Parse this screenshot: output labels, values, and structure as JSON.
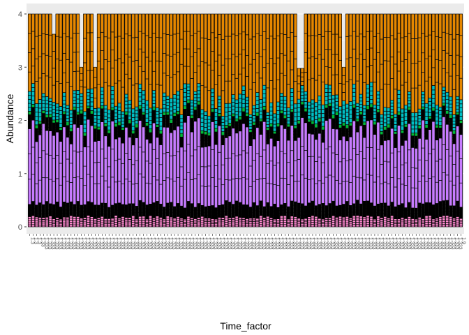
{
  "chart_data": {
    "type": "bar",
    "stacked": true,
    "title": "",
    "xlabel": "Time_factor",
    "ylabel": "Abundance",
    "ylim": [
      0,
      4
    ],
    "yticks": [
      0,
      1,
      2,
      3,
      4
    ],
    "grid": true,
    "legend": "none",
    "bar_count": 126,
    "stack_total": 4,
    "segment_outline_color": "#000000",
    "panel_background": "#ebebeb",
    "gridline_color": "#ffffff",
    "x_tick_label_orientation": "vertical, rotated 90 degrees",
    "low_total_bar_indices": [
      7,
      15,
      19,
      78,
      79,
      91
    ],
    "low_total_bar_values": [
      3.62,
      3.0,
      3.0,
      2.98,
      2.98,
      3.0
    ],
    "band_colors": {
      "base_pink": "#ff8ad1",
      "low_black": "#000000",
      "purple": "#c77cff",
      "mid_black": "#000000",
      "green": "#00ba38",
      "teal": "#00bfc4",
      "orange": "#e58700"
    },
    "typical_band_thickness": {
      "base_pink": 0.18,
      "low_black": 0.25,
      "purple": 1.35,
      "mid_black": 0.22,
      "green": 0.06,
      "teal": 0.35,
      "orange": 1.35
    },
    "x_tick_labels": [
      "1.3",
      "1.3",
      "1.3",
      "1.33",
      "1.333",
      "1.333",
      "1.333",
      "1.333",
      "1.333",
      "1.333",
      "1.333",
      "1.333",
      "1.333",
      "1.333",
      "1.333",
      "1.333",
      "1.333",
      "1.333",
      "1.333",
      "1.333",
      "1.333",
      "1.333",
      "1.333",
      "1.333",
      "1.333",
      "1.333",
      "1.333",
      "1.333",
      "1.333",
      "1.333",
      "1.333",
      "1.333",
      "1.333",
      "1.333",
      "1.333",
      "1.333",
      "1.333",
      "1.333",
      "1.333",
      "1.333",
      "1.333",
      "1.333",
      "1.333",
      "1.333",
      "1.333",
      "1.333",
      "1.333",
      "1.333",
      "1.333",
      "1.333",
      "1.333",
      "1.333",
      "1.333",
      "1.333",
      "1.333",
      "1.333",
      "1.333",
      "1.333",
      "1.333",
      "1.333",
      "1.333",
      "1.333",
      "1.333",
      "1.333",
      "1.333",
      "1.333",
      "1.333",
      "1.333",
      "1.333",
      "1.333",
      "1.333",
      "1.333",
      "1.333",
      "1.333",
      "1.333",
      "1.333",
      "1.333",
      "1.333",
      "1.333",
      "1.333",
      "1.333",
      "1.333",
      "1.333",
      "1.333",
      "1.333",
      "1.333",
      "1.333",
      "1.333",
      "1.333",
      "1.333",
      "1.333",
      "1.333",
      "1.333",
      "1.333",
      "1.333",
      "1.333",
      "1.333",
      "1.333",
      "1.333",
      "1.333",
      "1.333",
      "1.333",
      "1.333",
      "1.333",
      "1.333",
      "1.333",
      "1.333",
      "1.333",
      "1.333",
      "1.333",
      "1.333",
      "1.333",
      "1.333",
      "1.333",
      "1.333",
      "1.333",
      "1.333",
      "1.333",
      "1.333",
      "1.333",
      "1.333",
      "1.333",
      "1.333",
      "1.333",
      "1.333",
      "1.9"
    ]
  }
}
